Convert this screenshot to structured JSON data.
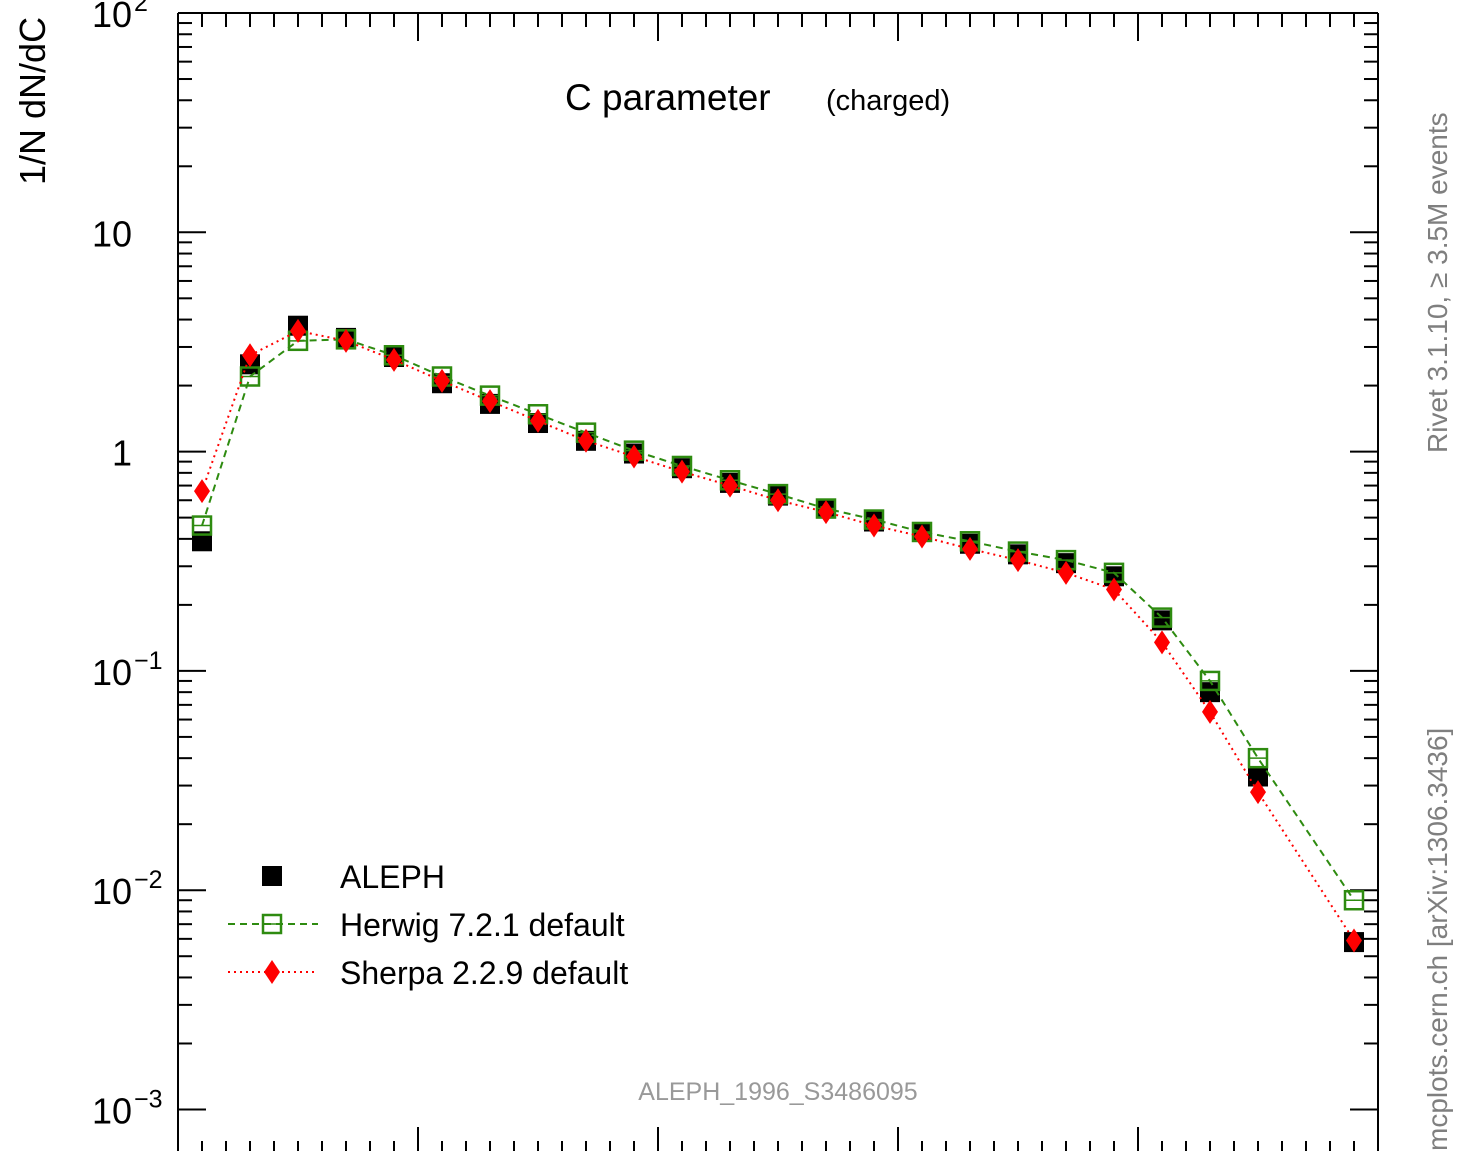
{
  "chart_data": {
    "type": "scatter",
    "title": "C parameter",
    "title_suffix": "(charged)",
    "ylabel": "1/N dN/dC",
    "xlabel": "",
    "y_scale": "log",
    "ylim": [
      0.001,
      100
    ],
    "xlim": [
      0,
      1
    ],
    "y_tick_labels": [
      {
        "value": 100,
        "base": "10",
        "exp": "2"
      },
      {
        "value": 10,
        "base": "10",
        "exp": ""
      },
      {
        "value": 1,
        "base": "1",
        "exp": ""
      },
      {
        "value": 0.1,
        "base": "10",
        "exp": "−1"
      },
      {
        "value": 0.01,
        "base": "10",
        "exp": "−2"
      },
      {
        "value": 0.001,
        "base": "10",
        "exp": "−3"
      }
    ],
    "grid": false,
    "legend_position": "bottom-left",
    "x": [
      0.02,
      0.06,
      0.1,
      0.14,
      0.18,
      0.22,
      0.26,
      0.3,
      0.34,
      0.38,
      0.42,
      0.46,
      0.5,
      0.54,
      0.58,
      0.62,
      0.66,
      0.7,
      0.74,
      0.78,
      0.82,
      0.86,
      0.9,
      0.94,
      0.98
    ],
    "series": [
      {
        "name": "ALEPH",
        "color": "#000000",
        "marker": "filled-square",
        "line": "none",
        "values": [
          0.39,
          2.5,
          3.75,
          3.3,
          2.7,
          2.05,
          1.65,
          1.35,
          1.12,
          0.98,
          0.84,
          0.72,
          0.63,
          0.55,
          0.48,
          0.43,
          0.38,
          0.34,
          0.31,
          0.27,
          0.17,
          0.08,
          0.033,
          null,
          0.0058
        ]
      },
      {
        "name": "Herwig 7.2.1 default",
        "color": "#2e8b10",
        "marker": "open-square",
        "line": "dashed",
        "values": [
          0.46,
          2.2,
          3.2,
          3.25,
          2.75,
          2.2,
          1.8,
          1.48,
          1.22,
          1.01,
          0.86,
          0.74,
          0.64,
          0.55,
          0.49,
          0.43,
          0.39,
          0.35,
          0.32,
          0.28,
          0.175,
          0.09,
          0.04,
          null,
          0.009
        ]
      },
      {
        "name": "Sherpa 2.2.9 default",
        "color": "#ff0000",
        "marker": "filled-diamond",
        "line": "dotted",
        "values": [
          0.66,
          2.75,
          3.55,
          3.2,
          2.62,
          2.1,
          1.7,
          1.38,
          1.12,
          0.95,
          0.81,
          0.7,
          0.6,
          0.53,
          0.46,
          0.41,
          0.36,
          0.32,
          0.28,
          0.235,
          0.135,
          0.065,
          0.028,
          null,
          0.0059
        ]
      }
    ],
    "annotation": "ALEPH_1996_S3486095"
  },
  "side_labels": {
    "rivet": "Rivet 3.1.10, ≥ 3.5M events",
    "mcplots": "mcplots.cern.ch [arXiv:1306.3436]"
  }
}
